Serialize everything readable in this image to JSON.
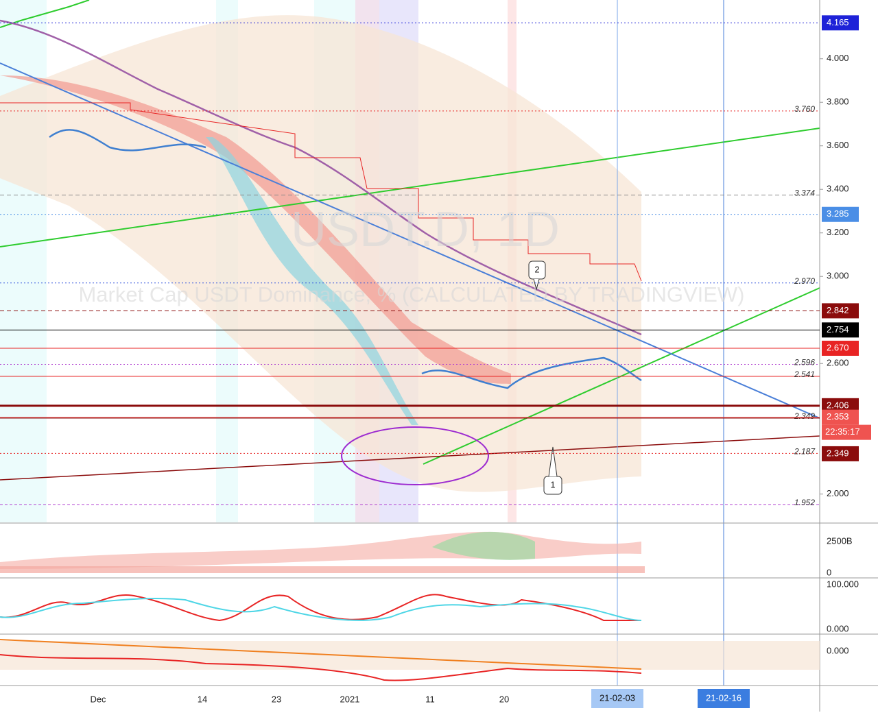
{
  "watermark": {
    "symbol": "USDT.D, 1D",
    "description": "Market Cap USDT Dominance, % (CALCULATED BY TRADINGVIEW)"
  },
  "price_axis": {
    "range": [
      1.87,
      4.27
    ],
    "ticks": [
      {
        "value": 4.0,
        "label": "4.000"
      },
      {
        "value": 3.8,
        "label": "3.800"
      },
      {
        "value": 3.6,
        "label": "3.600"
      },
      {
        "value": 3.4,
        "label": "3.400"
      },
      {
        "value": 3.2,
        "label": "3.200"
      },
      {
        "value": 3.0,
        "label": "3.000"
      },
      {
        "value": 2.6,
        "label": "2.600"
      },
      {
        "value": 2.0,
        "label": "2.000"
      }
    ]
  },
  "badges": [
    {
      "value": 4.165,
      "label": "4.165",
      "color": "#1e22d8"
    },
    {
      "value": 3.285,
      "label": "3.285",
      "color": "#4a8ee6"
    },
    {
      "value": 2.842,
      "label": "2.842",
      "color": "#8b0c0c"
    },
    {
      "value": 2.754,
      "label": "2.754",
      "color": "#000000"
    },
    {
      "value": 2.67,
      "label": "2.670",
      "color": "#e82424"
    },
    {
      "value": 2.406,
      "label": "2.406",
      "color": "#8b0c0c"
    },
    {
      "value": 2.353,
      "label": "2.353",
      "color": "#ef5350"
    },
    {
      "value": 2.349,
      "label": "2.349",
      "color": "#8b0c0c"
    }
  ],
  "countdown": "22:35:17",
  "level_labels": [
    {
      "value": 3.76,
      "label": "3.760"
    },
    {
      "value": 3.374,
      "label": "3.374"
    },
    {
      "value": 2.97,
      "label": "2.970"
    },
    {
      "value": 2.596,
      "label": "2.596"
    },
    {
      "value": 2.541,
      "label": "2.541"
    },
    {
      "value": 2.349,
      "label": "2.349"
    },
    {
      "value": 2.187,
      "label": "2.187"
    },
    {
      "value": 1.952,
      "label": "1.952"
    }
  ],
  "annotations": [
    "2",
    "1"
  ],
  "volume_axis": [
    "2500B",
    "0"
  ],
  "oscillator_axis": [
    "100.000",
    "0.000"
  ],
  "third_pane_axis": [
    "0.000"
  ],
  "date_axis": [
    "Dec",
    "14",
    "23",
    "2021",
    "11",
    "20"
  ],
  "crosshair_date": "21-02-03",
  "marker_date": "21-02-16"
}
